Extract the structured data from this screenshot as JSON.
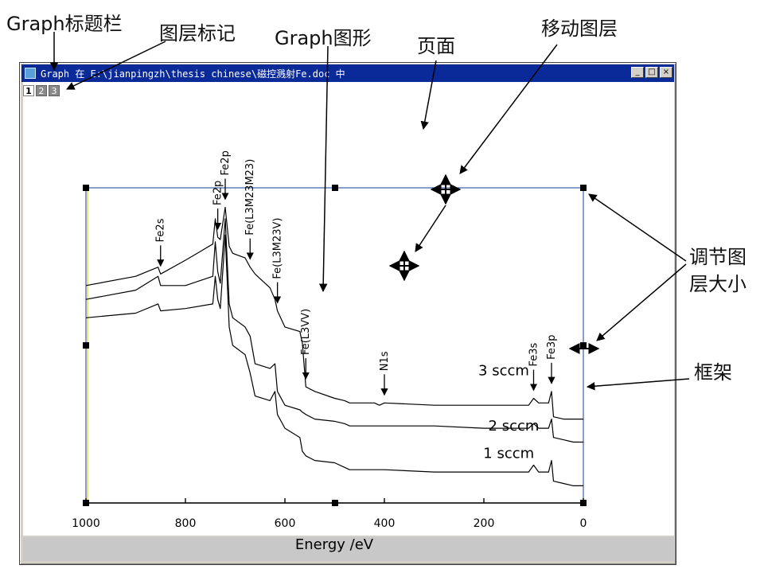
{
  "callouts": {
    "title_bar": "Graph标题栏",
    "layer_marker": "图层标记",
    "graph_figure": "Graph图形",
    "page": "页面",
    "move_layer": "移动图层",
    "resize_layer_lines": [
      "调节图",
      "层大小"
    ],
    "frame": "框架"
  },
  "window": {
    "title": "Graph 在 E:\\jianpingzh\\thesis chinese\\磁控溅射Fe.doc 中",
    "buttons": {
      "minimize": "_",
      "maximize": "□",
      "close": "×"
    },
    "layer_tabs": [
      "1",
      "2",
      "3"
    ]
  },
  "chart_data": {
    "type": "line",
    "xlabel": "Energy /eV",
    "xlim": [
      1000,
      0
    ],
    "x_ticks": [
      "1000",
      "800",
      "600",
      "400",
      "200",
      "0"
    ],
    "x_tick_values": [
      1000,
      800,
      600,
      400,
      200,
      0
    ],
    "y_axis_ticks_visible": false,
    "series": [
      {
        "name": "3 sccm",
        "x": [
          1000,
          900,
          855,
          850,
          800,
          745,
          740,
          735,
          730,
          720,
          712,
          705,
          680,
          670,
          660,
          630,
          620,
          615,
          600,
          570,
          565,
          558,
          540,
          500,
          480,
          470,
          420,
          410,
          400,
          300,
          200,
          110,
          100,
          90,
          70,
          64,
          60,
          40,
          20,
          5,
          0
        ],
        "y": [
          0.66,
          0.7,
          0.74,
          0.71,
          0.77,
          0.84,
          0.95,
          0.87,
          0.86,
          1.0,
          0.83,
          0.8,
          0.78,
          0.74,
          0.71,
          0.65,
          0.6,
          0.55,
          0.48,
          0.46,
          0.41,
          0.22,
          0.2,
          0.17,
          0.16,
          0.15,
          0.15,
          0.14,
          0.15,
          0.14,
          0.14,
          0.14,
          0.17,
          0.15,
          0.15,
          0.2,
          0.09,
          0.08,
          0.08,
          0.08,
          0.08
        ]
      },
      {
        "name": "2 sccm",
        "x": [
          1000,
          900,
          855,
          850,
          800,
          745,
          740,
          735,
          730,
          720,
          712,
          705,
          680,
          670,
          660,
          630,
          620,
          615,
          600,
          570,
          565,
          558,
          540,
          500,
          480,
          470,
          420,
          410,
          400,
          300,
          200,
          110,
          100,
          90,
          70,
          64,
          60,
          40,
          20,
          5,
          0
        ],
        "y": [
          0.6,
          0.64,
          0.7,
          0.66,
          0.66,
          0.7,
          0.85,
          0.72,
          0.67,
          0.95,
          0.58,
          0.52,
          0.48,
          0.44,
          0.32,
          0.3,
          0.32,
          0.2,
          0.14,
          0.12,
          0.11,
          0.1,
          0.08,
          0.07,
          0.06,
          0.05,
          0.05,
          0.05,
          0.05,
          0.05,
          0.04,
          0.04,
          0.06,
          0.04,
          0.04,
          0.08,
          0.0,
          -0.01,
          -0.02,
          -0.02,
          -0.02
        ]
      },
      {
        "name": "1 sccm",
        "x": [
          1000,
          900,
          855,
          850,
          800,
          745,
          740,
          735,
          730,
          720,
          712,
          705,
          680,
          670,
          660,
          630,
          620,
          615,
          600,
          570,
          565,
          558,
          540,
          500,
          480,
          470,
          420,
          410,
          400,
          300,
          200,
          110,
          100,
          90,
          70,
          64,
          60,
          40,
          20,
          5,
          0
        ],
        "y": [
          0.52,
          0.54,
          0.58,
          0.55,
          0.56,
          0.58,
          0.7,
          0.6,
          0.56,
          0.88,
          0.48,
          0.4,
          0.36,
          0.28,
          0.18,
          0.16,
          0.2,
          0.1,
          0.04,
          0.0,
          -0.06,
          -0.08,
          -0.1,
          -0.11,
          -0.13,
          -0.14,
          -0.14,
          -0.14,
          -0.14,
          -0.15,
          -0.15,
          -0.15,
          -0.12,
          -0.15,
          -0.15,
          -0.1,
          -0.19,
          -0.2,
          -0.21,
          -0.21,
          -0.21
        ]
      }
    ],
    "peak_labels": [
      {
        "text": "Fe2s",
        "x": 850
      },
      {
        "text": "Fe2p",
        "x": 735
      },
      {
        "text": "Fe2p",
        "x": 720
      },
      {
        "text": "Fe(L3M23M23)",
        "x": 670
      },
      {
        "text": "Fe(L3M23V)",
        "x": 615
      },
      {
        "text": "Fe(L3VV)",
        "x": 558
      },
      {
        "text": "N1s",
        "x": 400
      },
      {
        "text": "Fe3s",
        "x": 100
      },
      {
        "text": "Fe3p",
        "x": 64
      }
    ]
  }
}
